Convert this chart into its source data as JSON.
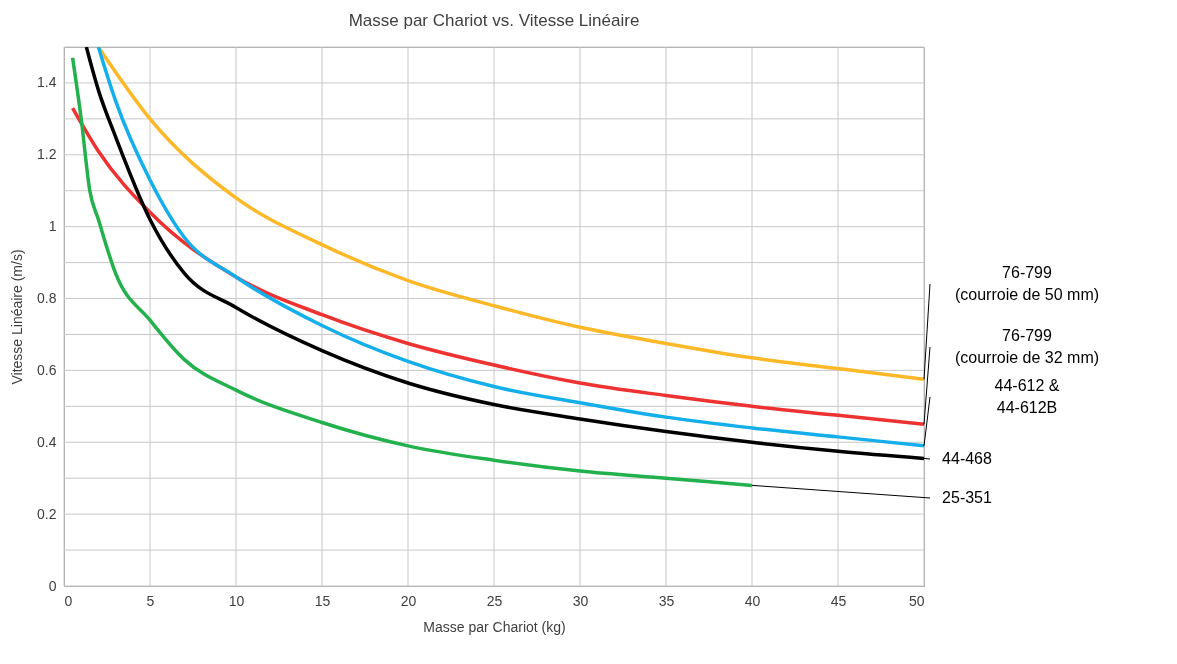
{
  "chart_data": {
    "type": "line",
    "title": "Masse par Chariot vs. Vitesse Linéaire",
    "xlabel": "Masse par Chariot (kg)",
    "ylabel": "Vitesse Linéaire (m/s)",
    "xlim": [
      0,
      50
    ],
    "xticks": [
      0,
      5,
      10,
      15,
      20,
      25,
      30,
      35,
      40,
      45,
      50
    ],
    "ylim": [
      0,
      1.5
    ],
    "yticks": [
      0,
      {
        "value": 0.1,
        "label": null
      },
      0.2,
      {
        "value": 0.3,
        "label": null
      },
      0.4,
      {
        "value": 0.5,
        "label": null
      },
      0.6,
      {
        "value": 0.7,
        "label": null
      },
      0.8,
      {
        "value": 0.9,
        "label": null
      },
      1,
      {
        "value": 1.1,
        "label": null
      },
      1.2,
      {
        "value": 1.3,
        "label": null
      },
      1.4,
      {
        "value": 1.5,
        "label": null
      }
    ],
    "grid": true,
    "legend": "right",
    "marker": "none",
    "line_style": "solid",
    "series": [
      {
        "name": "76-799\n(courroie de 50 mm)",
        "color": "#fdb827",
        "x": [
          2,
          5,
          10,
          15,
          20,
          25,
          30,
          35,
          40,
          45,
          50
        ],
        "values": [
          1.5,
          1.3,
          1.08,
          0.95,
          0.85,
          0.78,
          0.72,
          0.675,
          0.635,
          0.605,
          0.575
        ]
      },
      {
        "name": "76-799\n(courroie de 32 mm)",
        "color": "#ee3131",
        "x": [
          0.5,
          2,
          5,
          10,
          15,
          20,
          25,
          30,
          35,
          40,
          45,
          50
        ],
        "values": [
          1.33,
          1.21,
          1.04,
          0.86,
          0.755,
          0.675,
          0.615,
          0.565,
          0.53,
          0.5,
          0.475,
          0.45
        ]
      },
      {
        "name": "44-612 &\n44-612B",
        "color": "#14aeea",
        "x": [
          2,
          3,
          5,
          7,
          10,
          15,
          20,
          25,
          30,
          35,
          40,
          45,
          50
        ],
        "values": [
          1.5,
          1.35,
          1.13,
          0.97,
          0.86,
          0.725,
          0.625,
          0.555,
          0.51,
          0.47,
          0.44,
          0.415,
          0.39
        ]
      },
      {
        "name": "44-468",
        "color": "#000000",
        "x": [
          1.3,
          2,
          3,
          5,
          7,
          10,
          15,
          20,
          25,
          30,
          35,
          40,
          45,
          50
        ],
        "values": [
          1.5,
          1.38,
          1.25,
          1.02,
          0.87,
          0.775,
          0.655,
          0.565,
          0.505,
          0.465,
          0.43,
          0.4,
          0.375,
          0.355
        ]
      },
      {
        "name": "25-351",
        "color": "#22b14c",
        "x": [
          0.5,
          1,
          1.5,
          2,
          3,
          5,
          7,
          10,
          15,
          20,
          25,
          30,
          35,
          40
        ],
        "values": [
          1.47,
          1.3,
          1.1,
          1.02,
          0.87,
          0.74,
          0.63,
          0.545,
          0.455,
          0.39,
          0.35,
          0.32,
          0.3,
          0.28
        ]
      }
    ]
  }
}
